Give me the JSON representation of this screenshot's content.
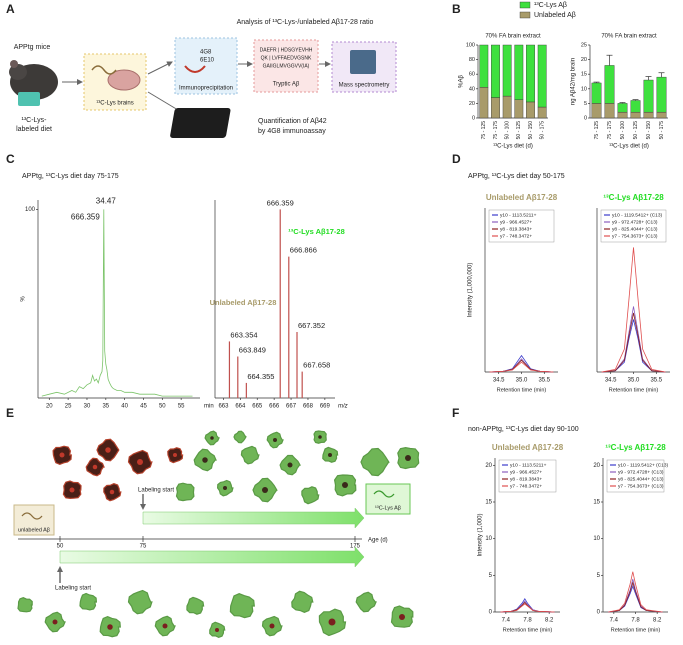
{
  "panel_labels": [
    "A",
    "B",
    "C",
    "D",
    "E",
    "F"
  ],
  "panel_a": {
    "mouse_title": "APPtg mice",
    "diet": [
      "¹³C-Lys-",
      "labeled diet"
    ],
    "brains": "¹³C-Lys brains",
    "analysis_title": "Analysis of ¹³C-Lys-/unlabeled Aβ17-28 ratio",
    "antibodies": [
      "4G8",
      "6E10"
    ],
    "ip": "Immunoprecipitation",
    "sequences": [
      "DAEFR | HDSGYEVHH",
      "QK | LVFFAEDVGSNK",
      "GAIIGLMVGGVV(IA)"
    ],
    "tryptic": "Tryptic Aβ",
    "ms": "Mass spectrometry",
    "quant": [
      "Quantification of Aβ42",
      "by 4G8 immunoassay"
    ]
  },
  "panel_c": {
    "title": "APPtg, ¹³C-Lys diet day 75-175"
  },
  "panel_d": {
    "title": "APPtg, ¹³C-Lys diet day 50-175"
  },
  "panel_e": {
    "unlabeled": "unlabeled Aβ",
    "labeled": "¹³C-Lys Aβ",
    "labeling_start": [
      "Labeling start",
      "Labeling start"
    ],
    "ages": [
      "50",
      "75",
      "175"
    ],
    "age_label": "Age (d)"
  },
  "panel_f": {
    "title": "non-APPtg, ¹³C-Lys diet day 90-100"
  },
  "chart_data": [
    {
      "type": "stacked-bar",
      "title": "70% FA brain extract",
      "ylabel": "%Aβ",
      "xlabel": "¹³C-Lys diet (d)",
      "categories": [
        "75 - 125",
        "75 - 175",
        "50 - 100",
        "50 - 125",
        "50 - 150",
        "50 - 175"
      ],
      "series": [
        {
          "name": "Unlabeled Aβ",
          "color": "#a89b6a",
          "values": [
            42,
            28,
            30,
            25,
            22,
            15
          ]
        },
        {
          "name": "¹³C-Lys Aβ",
          "color": "#3ee03e",
          "values": [
            58,
            72,
            70,
            75,
            78,
            85
          ]
        }
      ],
      "ylim": [
        0,
        100
      ],
      "yticks": [
        0,
        20,
        40,
        60,
        80,
        100
      ],
      "legend": "top"
    },
    {
      "type": "stacked-bar",
      "title": "70% FA brain extract",
      "ylabel": "ng Aβ42/mg brain",
      "xlabel": "¹³C-Lys diet (d)",
      "categories": [
        "75 - 125",
        "75 - 175",
        "50 - 100",
        "50 - 125",
        "50 - 150",
        "50 - 175"
      ],
      "series": [
        {
          "color": "#a89b6a",
          "values": [
            5,
            5,
            2,
            2,
            2,
            2
          ]
        },
        {
          "color": "#3ee03e",
          "values": [
            7,
            13,
            3,
            4,
            11,
            12
          ],
          "errors": [
            0.3,
            3.5,
            0.3,
            0.3,
            1.2,
            1.5
          ]
        }
      ],
      "ylim": [
        0,
        25
      ],
      "yticks": [
        0,
        5,
        10,
        15,
        20,
        25
      ]
    },
    {
      "type": "line",
      "ylabel": "%",
      "xlabel": "min",
      "x": [
        18,
        20,
        22,
        24,
        26,
        27,
        28,
        29,
        30,
        31,
        31.5,
        32,
        32.5,
        33,
        33.5,
        34,
        34.2,
        34.47,
        34.7,
        35,
        35.3,
        35.6,
        36,
        36.5,
        37,
        38,
        39,
        40,
        42,
        44,
        46,
        48,
        50,
        52,
        54,
        56,
        58
      ],
      "series": [
        {
          "color": "#7cc46a",
          "values": [
            1,
            2,
            3,
            2,
            4,
            3,
            6,
            5,
            7,
            8,
            12,
            9,
            10,
            8,
            12,
            14,
            20,
            100,
            25,
            18,
            15,
            10,
            8,
            6,
            5,
            4,
            4,
            3,
            3,
            2,
            2,
            2,
            1,
            1,
            1,
            1,
            1
          ]
        }
      ],
      "xlim": [
        17,
        60
      ],
      "xticks": [
        20,
        25,
        30,
        35,
        40,
        45,
        50,
        55
      ],
      "ylim": [
        0,
        105
      ],
      "yticks": [
        100
      ],
      "annotations": [
        "34.47",
        "666.359"
      ]
    },
    {
      "type": "stem",
      "xlabel": "m/z",
      "color": "#c0504d",
      "x": [
        663.354,
        663.849,
        664.355,
        666.359,
        666.866,
        667.352,
        667.658
      ],
      "values": [
        30,
        22,
        8,
        100,
        75,
        35,
        14
      ],
      "xlim": [
        662.5,
        669.6
      ],
      "xticks": [
        663,
        664,
        665,
        666,
        667,
        668,
        669
      ],
      "ylim": [
        0,
        105
      ],
      "labels": [
        {
          "text": "Unlabeled Aβ17-28",
          "color": "#a89b6a"
        },
        {
          "text": "¹³C-Lys Aβ17-28",
          "color": "#22dd22"
        }
      ]
    },
    {
      "type": "line",
      "title": "Unlabeled Aβ17-28",
      "title_color": "#a89b6a",
      "ylabel": "Intensity (1,000,000)",
      "xlabel": "Retention time (min)",
      "legend": "box",
      "x": [
        34.3,
        34.6,
        34.8,
        34.9,
        35.0,
        35.1,
        35.2,
        35.4,
        35.7
      ],
      "series": [
        {
          "name": "y10 - 1113.5211+",
          "color": "#3c3ccc",
          "values": [
            0,
            0.1,
            0.5,
            1.5,
            2.5,
            1.5,
            0.5,
            0.1,
            0
          ]
        },
        {
          "name": "y9 - 966.4527+",
          "color": "#8b5fbf",
          "values": [
            0,
            0.1,
            0.4,
            1.2,
            2,
            1.2,
            0.4,
            0.1,
            0
          ]
        },
        {
          "name": "y8 - 819.3843+",
          "color": "#8b2020",
          "values": [
            0,
            0.1,
            0.4,
            1.1,
            1.8,
            1.1,
            0.4,
            0.1,
            0
          ]
        },
        {
          "name": "y7 - 748.3472+",
          "color": "#e05050",
          "values": [
            0,
            0.1,
            0.3,
            0.9,
            1.5,
            0.9,
            0.3,
            0.1,
            0
          ]
        }
      ],
      "xlim": [
        34.2,
        35.8
      ],
      "xticks": [
        34.5,
        {
          "value": 35,
          "label": "35.0"
        },
        35.5
      ],
      "ylim": [
        0,
        25
      ]
    },
    {
      "type": "line",
      "title": "¹³C-Lys Aβ17-28",
      "title_color": "#22dd22",
      "xlabel": "Retention time (min)",
      "legend": "box",
      "x": [
        34.3,
        34.6,
        34.8,
        34.9,
        35.0,
        35.1,
        35.2,
        35.4,
        35.7
      ],
      "series": [
        {
          "name": "y10 - 1119.5412+ (C13)",
          "color": "#3c3ccc",
          "values": [
            0,
            0.2,
            1.5,
            5,
            8,
            5,
            1.5,
            0.2,
            0
          ]
        },
        {
          "name": "y9 - 972.4728+ (C13)",
          "color": "#8b5fbf",
          "values": [
            0,
            0.2,
            2,
            6,
            10,
            6,
            2,
            0.2,
            0
          ]
        },
        {
          "name": "y8 - 825.4044+ (C13)",
          "color": "#8b2020",
          "values": [
            0,
            0.2,
            1.8,
            5.5,
            9,
            5.5,
            1.8,
            0.2,
            0
          ]
        },
        {
          "name": "y7 - 754.3673+ (C13)",
          "color": "#e05050",
          "values": [
            0,
            0.4,
            3.5,
            11,
            19,
            11,
            3.5,
            0.4,
            0
          ]
        }
      ],
      "xlim": [
        34.2,
        35.8
      ],
      "xticks": [
        34.5,
        {
          "value": 35,
          "label": "35.0"
        },
        35.5
      ],
      "ylim": [
        0,
        25
      ]
    },
    {
      "type": "line",
      "title": "Unlabeled Aβ17-28",
      "title_color": "#a89b6a",
      "ylabel": "Intensity (1,000)",
      "xlabel": "Retention time (min)",
      "legend": "box",
      "x": [
        7.3,
        7.5,
        7.6,
        7.7,
        7.75,
        7.8,
        7.9,
        8.0,
        8.3
      ],
      "series": [
        {
          "name": "y10 - 1113.5211+",
          "color": "#3c3ccc",
          "values": [
            0,
            0.1,
            0.4,
            1.2,
            1.8,
            1.2,
            0.3,
            0.1,
            0
          ]
        },
        {
          "name": "y9 - 966.4527+",
          "color": "#8b5fbf",
          "values": [
            0,
            0.1,
            0.3,
            1,
            1.5,
            1,
            0.3,
            0.1,
            0
          ]
        },
        {
          "name": "y8 - 819.3843+",
          "color": "#8b2020",
          "values": [
            0,
            0.1,
            0.3,
            0.9,
            1.3,
            0.9,
            0.2,
            0.1,
            0
          ]
        },
        {
          "name": "y7 - 748.3472+",
          "color": "#e05050",
          "values": [
            0,
            0.1,
            0.2,
            0.8,
            1.1,
            0.8,
            0.2,
            0.1,
            0
          ]
        }
      ],
      "xlim": [
        7.2,
        8.4
      ],
      "xticks": [
        7.4,
        7.8,
        8.2
      ],
      "ylim": [
        0,
        21
      ],
      "yticks": [
        0,
        5,
        10,
        15,
        20
      ]
    },
    {
      "type": "line",
      "title": "¹³C-Lys Aβ17-28",
      "title_color": "#22dd22",
      "xlabel": "Retention time (min)",
      "legend": "box",
      "x": [
        7.3,
        7.5,
        7.6,
        7.7,
        7.75,
        7.8,
        7.9,
        8.0,
        8.3
      ],
      "series": [
        {
          "name": "y10 - 1119.5412+ (C13)",
          "color": "#3c3ccc",
          "values": [
            0,
            0.2,
            0.8,
            2.5,
            3.5,
            2.5,
            0.6,
            0.2,
            0
          ]
        },
        {
          "name": "y9 - 972.4728+ (C13)",
          "color": "#8b5fbf",
          "values": [
            0,
            0.2,
            1,
            3,
            4.5,
            3,
            0.8,
            0.2,
            0
          ]
        },
        {
          "name": "y8 - 825.4044+ (C13)",
          "color": "#8b2020",
          "values": [
            0,
            0.2,
            0.9,
            2.8,
            4,
            2.8,
            0.7,
            0.2,
            0
          ]
        },
        {
          "name": "y7 - 754.3673+ (C13)",
          "color": "#e05050",
          "values": [
            0,
            0.3,
            1.2,
            3.8,
            5.5,
            3.8,
            1,
            0.3,
            0
          ]
        }
      ],
      "xlim": [
        7.2,
        8.4
      ],
      "xticks": [
        7.4,
        7.8,
        8.2
      ],
      "ylim": [
        0,
        21
      ],
      "yticks": [
        0,
        5,
        10,
        15,
        20
      ]
    }
  ]
}
